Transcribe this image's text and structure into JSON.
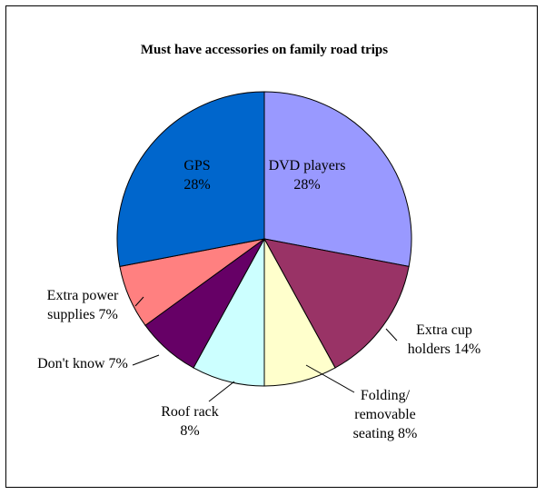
{
  "chart_data": {
    "type": "pie",
    "title": "Must have accessories on family road trips",
    "slices": [
      {
        "label_lines": [
          "DVD players",
          "28%"
        ],
        "value": 28,
        "color": "#9999ff"
      },
      {
        "label_lines": [
          "Extra cup",
          "holders 14%"
        ],
        "value": 14,
        "color": "#993366"
      },
      {
        "label_lines": [
          "Folding/",
          "removable",
          "seating 8%"
        ],
        "value": 8,
        "color": "#ffffcc"
      },
      {
        "label_lines": [
          "Roof rack",
          "8%"
        ],
        "value": 8,
        "color": "#ccffff"
      },
      {
        "label_lines": [
          "Don't know 7%"
        ],
        "value": 7,
        "color": "#660066"
      },
      {
        "label_lines": [
          "Extra power",
          "supplies 7%"
        ],
        "value": 7,
        "color": "#ff8080"
      },
      {
        "label_lines": [
          "GPS",
          "28%"
        ],
        "value": 28,
        "color": "#0066cc"
      }
    ]
  }
}
